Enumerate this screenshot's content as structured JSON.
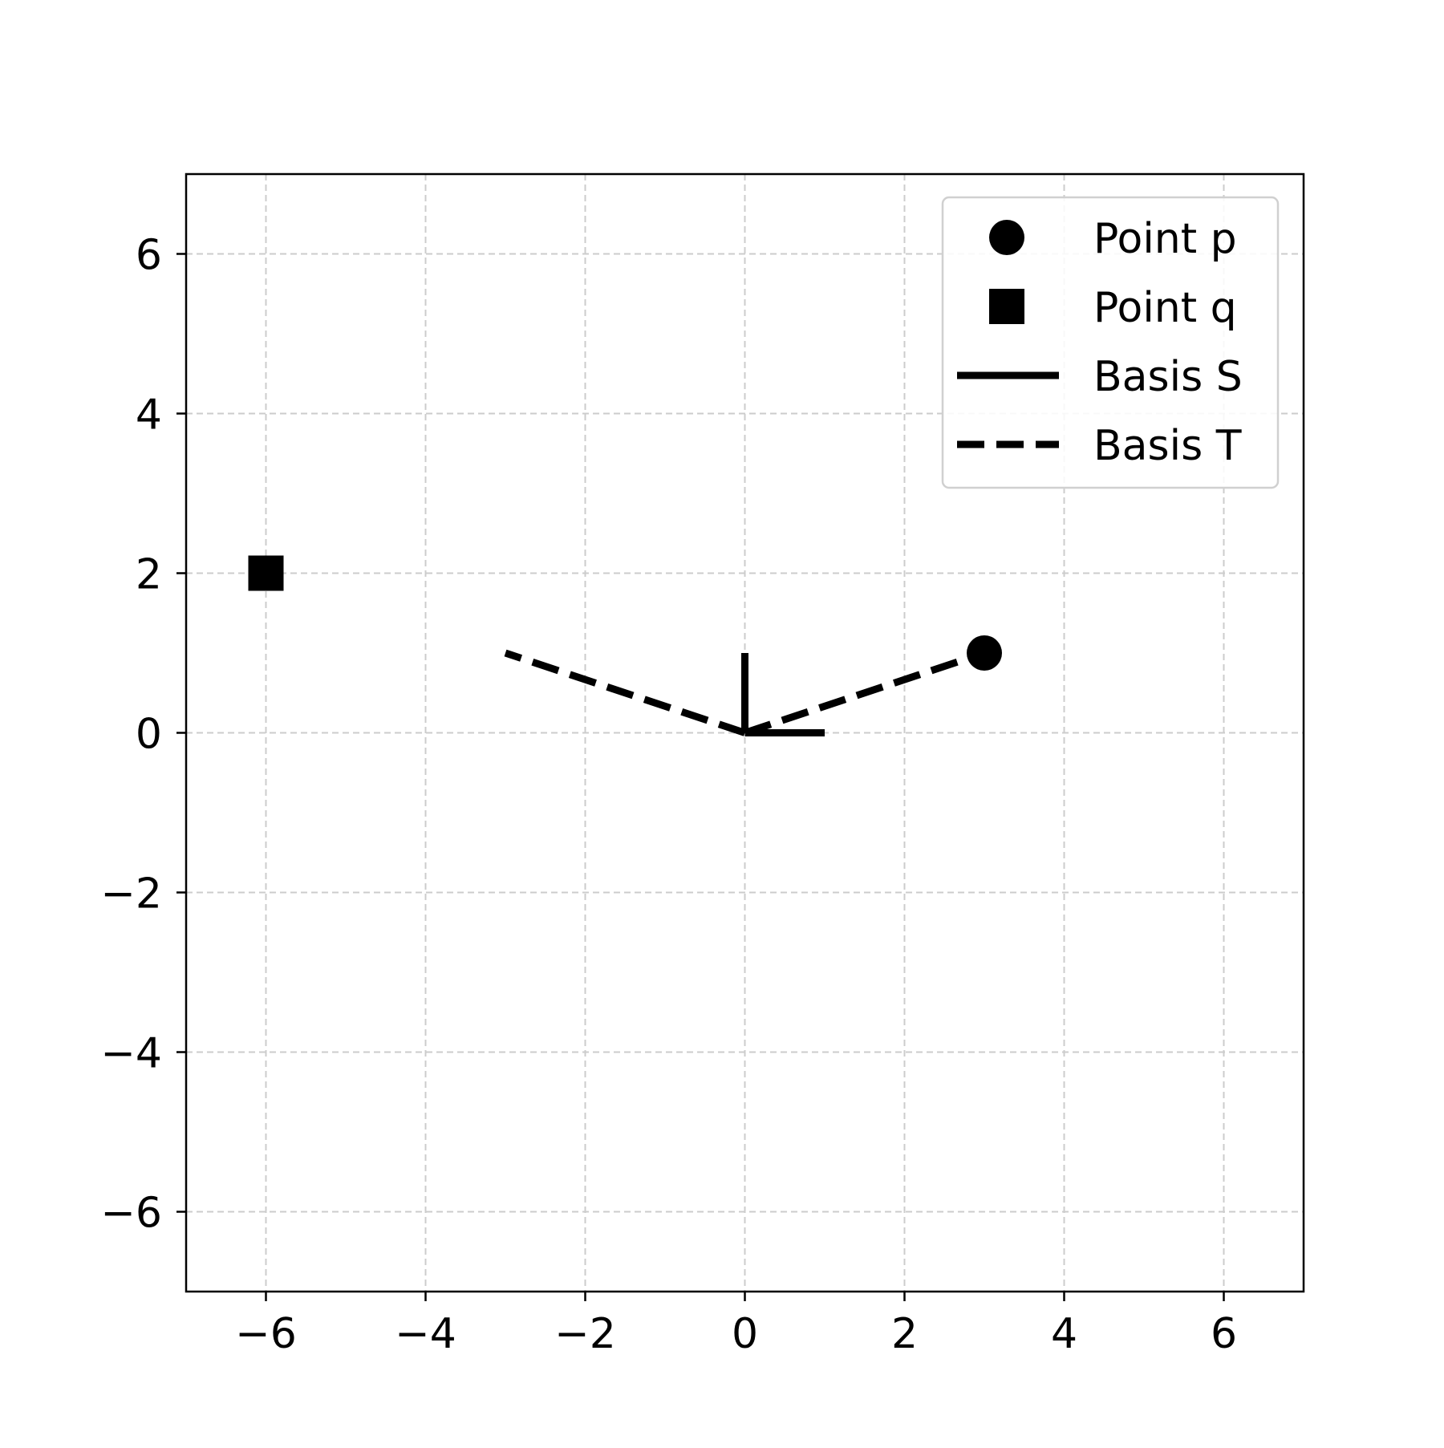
{
  "chart_data": {
    "type": "scatter",
    "title": "",
    "xlabel": "",
    "ylabel": "",
    "xlim": [
      -7,
      7
    ],
    "ylim": [
      -7,
      7
    ],
    "xticks": [
      -6,
      -4,
      -2,
      0,
      2,
      4,
      6
    ],
    "yticks": [
      -6,
      -4,
      -2,
      0,
      2,
      4,
      6
    ],
    "xtick_labels": [
      "−6",
      "−4",
      "−2",
      "0",
      "2",
      "4",
      "6"
    ],
    "ytick_labels": [
      "−6",
      "−4",
      "−2",
      "0",
      "2",
      "4",
      "6"
    ],
    "grid": true,
    "legend_position": "top-right",
    "series": [
      {
        "name": "Point p",
        "kind": "marker",
        "marker": "circle",
        "points": [
          [
            3,
            1
          ]
        ]
      },
      {
        "name": "Point q",
        "kind": "marker",
        "marker": "square",
        "points": [
          [
            -6,
            2
          ]
        ]
      },
      {
        "name": "Basis S",
        "kind": "lines",
        "style": "solid",
        "segments": [
          [
            [
              0,
              0
            ],
            [
              1,
              0
            ]
          ],
          [
            [
              0,
              0
            ],
            [
              0,
              1
            ]
          ]
        ]
      },
      {
        "name": "Basis T",
        "kind": "lines",
        "style": "dashed",
        "segments": [
          [
            [
              0,
              0
            ],
            [
              3,
              1
            ]
          ],
          [
            [
              0,
              0
            ],
            [
              -3,
              1
            ]
          ]
        ]
      }
    ],
    "colors": {
      "marks": "#000000",
      "grid": "#cccccc",
      "frame": "#000000"
    }
  }
}
